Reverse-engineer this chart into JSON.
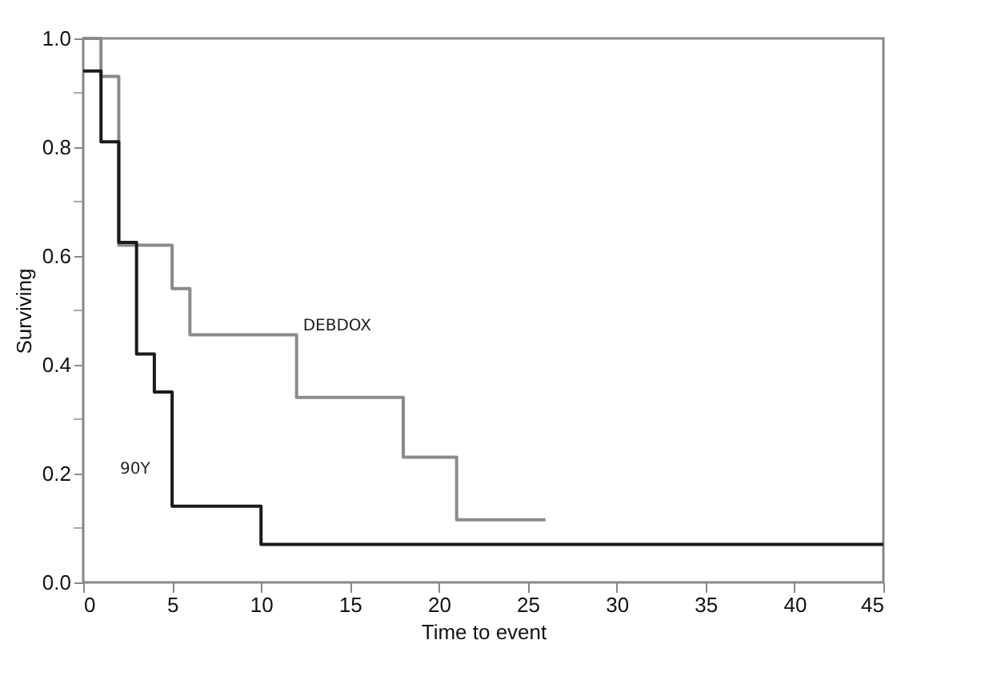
{
  "chart_data": {
    "type": "step",
    "xlabel": "Time to event",
    "ylabel": "Surviving",
    "xlim": [
      0,
      45
    ],
    "xticks": [
      0,
      5,
      10,
      15,
      20,
      25,
      30,
      35,
      40,
      45
    ],
    "ylim": [
      0,
      1
    ],
    "yticks": [
      {
        "value": 0,
        "label": "0.0"
      },
      {
        "value": 0.1,
        "label": null
      },
      {
        "value": 0.2,
        "label": "0.2"
      },
      {
        "value": 0.3,
        "label": null
      },
      {
        "value": 0.4,
        "label": "0.4"
      },
      {
        "value": 0.5,
        "label": null
      },
      {
        "value": 0.6,
        "label": "0.6"
      },
      {
        "value": 0.7,
        "label": null
      },
      {
        "value": 0.8,
        "label": "0.8"
      },
      {
        "value": 0.9,
        "label": null
      },
      {
        "value": 1,
        "label": "1.0"
      }
    ],
    "grid": false,
    "legend": false,
    "series": [
      {
        "name": "DEBDOX",
        "color": "#8a8a8a",
        "x": [
          0,
          1,
          2,
          5,
          6,
          12,
          18,
          21,
          26
        ],
        "values": [
          1.0,
          0.93,
          0.62,
          0.54,
          0.455,
          0.34,
          0.23,
          0.115,
          0.115
        ]
      },
      {
        "name": "90Y",
        "color": "#1a1a1a",
        "x": [
          0,
          1,
          2,
          3,
          4,
          5,
          10,
          45
        ],
        "values": [
          0.94,
          0.81,
          0.625,
          0.42,
          0.35,
          0.14,
          0.07,
          0.07
        ]
      }
    ]
  }
}
